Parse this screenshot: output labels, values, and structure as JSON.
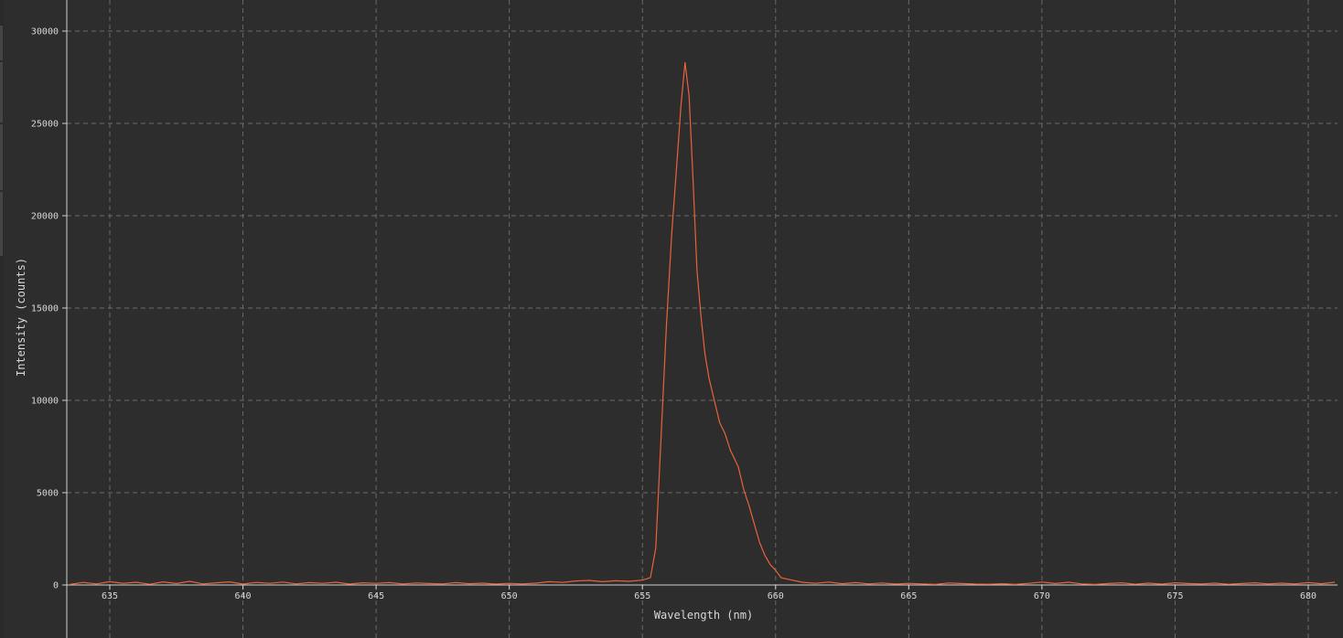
{
  "chart_data": {
    "type": "line",
    "title": "",
    "xlabel": "Wavelength (nm)",
    "ylabel": "Intensity (counts)",
    "xlim": [
      633.5,
      681
    ],
    "ylim": [
      0,
      32000
    ],
    "x_ticks": [
      635,
      640,
      645,
      650,
      655,
      660,
      665,
      670,
      675,
      680
    ],
    "y_ticks": [
      0,
      5000,
      10000,
      15000,
      20000,
      25000,
      30000
    ],
    "x_tick_labels": [
      "635",
      "640",
      "645",
      "650",
      "655",
      "660",
      "665",
      "670",
      "675",
      "680"
    ],
    "y_tick_labels": [
      "0",
      "5000",
      "10000",
      "15000",
      "20000",
      "25000",
      "30000"
    ],
    "grid": true,
    "legend": "none",
    "series": [
      {
        "color": "#e8633a",
        "points": [
          [
            633.5,
            30
          ],
          [
            634.0,
            140
          ],
          [
            634.5,
            60
          ],
          [
            635.0,
            180
          ],
          [
            635.5,
            90
          ],
          [
            636.0,
            150
          ],
          [
            636.5,
            40
          ],
          [
            637.0,
            170
          ],
          [
            637.5,
            80
          ],
          [
            638.0,
            200
          ],
          [
            638.5,
            60
          ],
          [
            639.0,
            120
          ],
          [
            639.5,
            170
          ],
          [
            640.0,
            50
          ],
          [
            640.5,
            140
          ],
          [
            641.0,
            90
          ],
          [
            641.5,
            160
          ],
          [
            642.0,
            60
          ],
          [
            642.5,
            130
          ],
          [
            643.0,
            90
          ],
          [
            643.5,
            150
          ],
          [
            644.0,
            50
          ],
          [
            644.5,
            120
          ],
          [
            645.0,
            90
          ],
          [
            645.5,
            130
          ],
          [
            646.0,
            60
          ],
          [
            646.5,
            110
          ],
          [
            647.0,
            80
          ],
          [
            647.5,
            60
          ],
          [
            648.0,
            130
          ],
          [
            648.5,
            70
          ],
          [
            649.0,
            100
          ],
          [
            649.5,
            50
          ],
          [
            650.0,
            90
          ],
          [
            650.5,
            60
          ],
          [
            651.0,
            100
          ],
          [
            651.5,
            180
          ],
          [
            652.0,
            140
          ],
          [
            652.5,
            220
          ],
          [
            653.0,
            250
          ],
          [
            653.5,
            180
          ],
          [
            654.0,
            230
          ],
          [
            654.5,
            200
          ],
          [
            655.0,
            260
          ],
          [
            655.3,
            400
          ],
          [
            655.5,
            2000
          ],
          [
            655.7,
            8000
          ],
          [
            655.9,
            14000
          ],
          [
            656.1,
            19000
          ],
          [
            656.3,
            23000
          ],
          [
            656.45,
            26000
          ],
          [
            656.6,
            28300
          ],
          [
            656.75,
            26500
          ],
          [
            656.9,
            22000
          ],
          [
            657.05,
            17000
          ],
          [
            657.2,
            14500
          ],
          [
            657.35,
            12500
          ],
          [
            657.5,
            11200
          ],
          [
            657.7,
            10000
          ],
          [
            657.9,
            8800
          ],
          [
            658.1,
            8200
          ],
          [
            658.3,
            7300
          ],
          [
            658.6,
            6400
          ],
          [
            658.8,
            5200
          ],
          [
            659.0,
            4300
          ],
          [
            659.2,
            3300
          ],
          [
            659.4,
            2300
          ],
          [
            659.6,
            1600
          ],
          [
            659.8,
            1100
          ],
          [
            660.0,
            800
          ],
          [
            660.2,
            400
          ],
          [
            660.5,
            300
          ],
          [
            661.0,
            150
          ],
          [
            661.5,
            90
          ],
          [
            662.0,
            160
          ],
          [
            662.5,
            70
          ],
          [
            663.0,
            130
          ],
          [
            663.5,
            60
          ],
          [
            664.0,
            110
          ],
          [
            664.5,
            50
          ],
          [
            665.0,
            90
          ],
          [
            665.5,
            60
          ],
          [
            666.0,
            30
          ],
          [
            666.5,
            110
          ],
          [
            667.0,
            80
          ],
          [
            667.5,
            50
          ],
          [
            668.0,
            40
          ],
          [
            668.5,
            70
          ],
          [
            669.0,
            30
          ],
          [
            669.5,
            90
          ],
          [
            670.0,
            160
          ],
          [
            670.5,
            80
          ],
          [
            671.0,
            150
          ],
          [
            671.5,
            60
          ],
          [
            672.0,
            30
          ],
          [
            672.5,
            80
          ],
          [
            673.0,
            120
          ],
          [
            673.5,
            40
          ],
          [
            674.0,
            100
          ],
          [
            674.5,
            50
          ],
          [
            675.0,
            120
          ],
          [
            675.5,
            80
          ],
          [
            676.0,
            60
          ],
          [
            676.5,
            100
          ],
          [
            677.0,
            40
          ],
          [
            677.5,
            80
          ],
          [
            678.0,
            120
          ],
          [
            678.5,
            60
          ],
          [
            679.0,
            100
          ],
          [
            679.5,
            60
          ],
          [
            680.0,
            130
          ],
          [
            680.5,
            70
          ],
          [
            681.0,
            150
          ]
        ]
      }
    ]
  },
  "colors": {
    "background": "#2d2d2d",
    "grid": "#6a6a6a",
    "axis": "#d0d0d0",
    "text": "#d8d8d8",
    "line": "#e8633a"
  }
}
